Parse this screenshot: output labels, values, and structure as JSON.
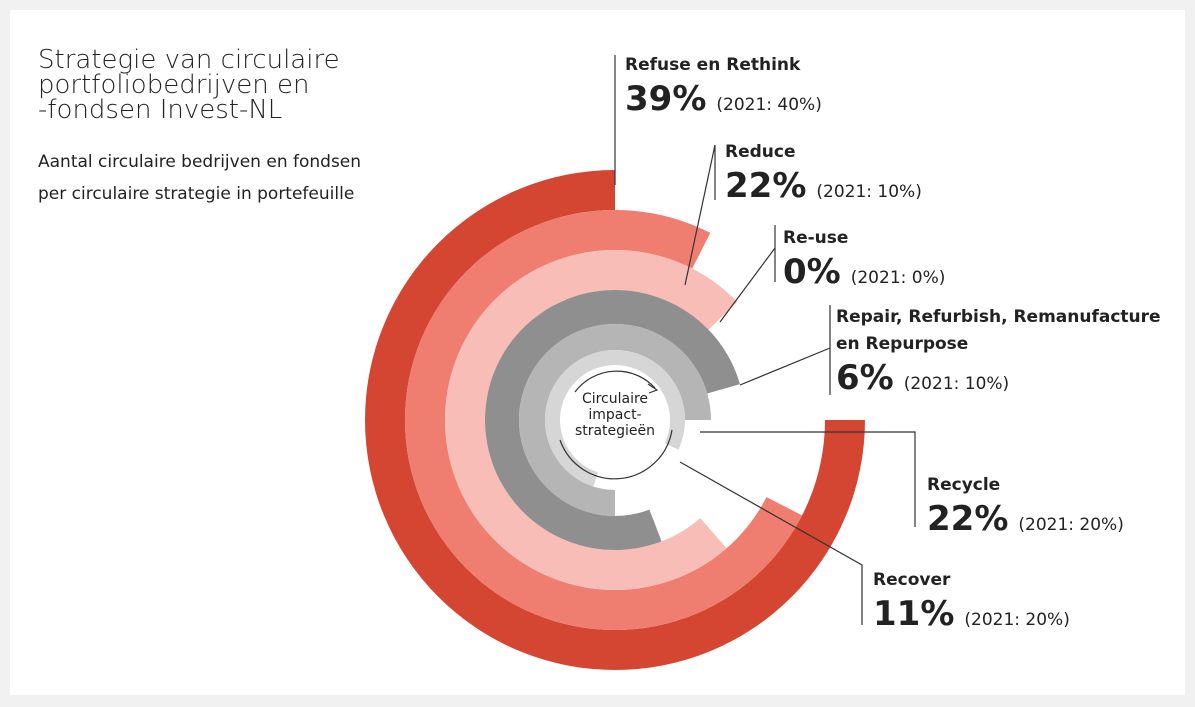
{
  "title": [
    "Strategie van circulaire",
    "portfoliobedrijven en",
    "-fondsen Invest-NL"
  ],
  "subtitle": [
    "Aantal circulaire bedrijven en fondsen",
    "per circulaire strategie in portefeuille"
  ],
  "center_label": [
    "Circulaire",
    "impact-",
    "strategieën"
  ],
  "items": [
    {
      "name": [
        "Refuse en Rethink"
      ],
      "share": "39%",
      "previous": "(2021: 40%)"
    },
    {
      "name": [
        "Reduce"
      ],
      "share": "22%",
      "previous": "(2021: 10%)"
    },
    {
      "name": [
        "Re-use"
      ],
      "share": "0%",
      "previous": "(2021: 0%)"
    },
    {
      "name": [
        "Repair, Refurbish, Remanufacture",
        "en Repurpose"
      ],
      "share": "6%",
      "previous": "(2021: 10%)"
    },
    {
      "name": [
        "Recycle"
      ],
      "share": "22%",
      "previous": "(2021: 20%)"
    },
    {
      "name": [
        "Recover"
      ],
      "share": "11%",
      "previous": "(2021: 20%)"
    }
  ]
}
